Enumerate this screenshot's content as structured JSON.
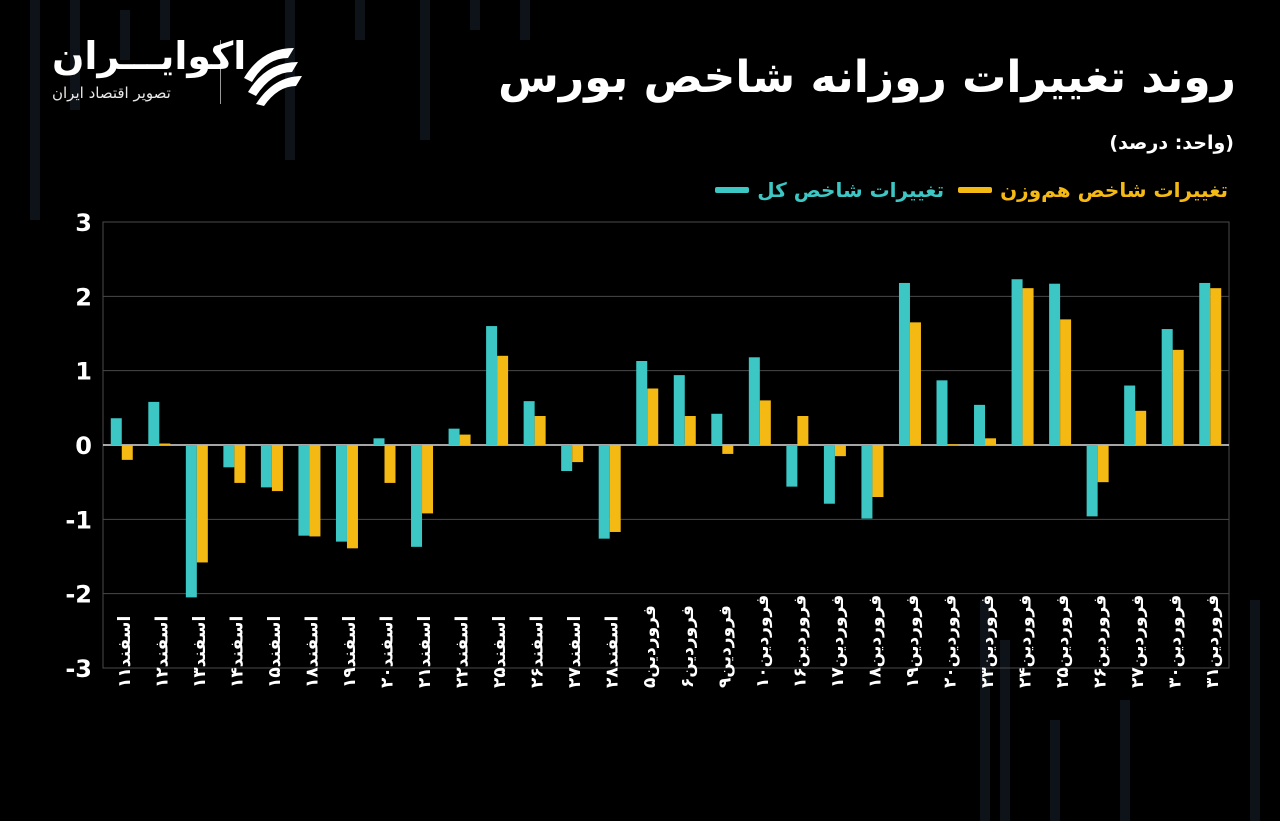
{
  "header": {
    "title": "روند تغییرات روزانه شاخص بورس",
    "unit": "(واحد: درصد)"
  },
  "brand": {
    "name": "اکوایـــران",
    "subtitle": "تصویر اقتصاد ایران",
    "logo_icon": "ecoiran-logo-icon"
  },
  "colors": {
    "background": "#000000",
    "series_total": "#3cc6c4",
    "series_equal": "#f5b914",
    "grid": "#4a4a4a",
    "text": "#ffffff"
  },
  "legend": {
    "total": "تغییرات شاخص کل",
    "equal": "تغییرات شاخص هم‌وزن"
  },
  "chart_data": {
    "type": "bar",
    "ylim": [
      -3,
      3
    ],
    "yticks": [
      3,
      2,
      1,
      0,
      -1,
      -2,
      -3
    ],
    "ytick_labels": [
      "3",
      "2",
      "1",
      "0",
      "-1",
      "-2",
      "-3"
    ],
    "grid": true,
    "legend_position": "top-right",
    "categories": [
      "اسفند۱۱",
      "اسفند۱۲",
      "اسفند۱۳",
      "اسفند۱۴",
      "اسفند۱۵",
      "اسفند۱۸",
      "اسفند۱۹",
      "اسفند۲۰",
      "اسفند۲۱",
      "اسفند۲۲",
      "اسفند۲۵",
      "اسفند۲۶",
      "اسفند۲۷",
      "اسفند۲۸",
      "فروردین۵",
      "فروردین۶",
      "فروردین۹",
      "فروردین۱۰",
      "فروردین۱۶",
      "فروردین۱۷",
      "فروردین۱۸",
      "فروردین۱۹",
      "فروردین۲۰",
      "فروردین۲۳",
      "فروردین۲۴",
      "فروردین۲۵",
      "فروردین۲۶",
      "فروردین۲۷",
      "فروردین۳۰",
      "فروردین۳۱"
    ],
    "series": [
      {
        "name": "تغییرات شاخص کل",
        "values": [
          0.36,
          0.58,
          -2.05,
          -0.3,
          -0.57,
          -1.22,
          -1.3,
          0.09,
          -1.37,
          0.22,
          1.6,
          0.59,
          -0.35,
          -1.26,
          1.13,
          0.94,
          0.42,
          1.18,
          -0.56,
          -0.79,
          -0.99,
          2.18,
          0.87,
          0.54,
          2.23,
          2.17,
          -0.96,
          0.8,
          1.56,
          2.18
        ]
      },
      {
        "name": "تغییرات شاخص هم‌وزن",
        "values": [
          -0.2,
          0.02,
          -1.58,
          -0.51,
          -0.62,
          -1.23,
          -1.39,
          -0.51,
          -0.92,
          0.14,
          1.2,
          0.39,
          -0.23,
          -1.17,
          0.76,
          0.39,
          -0.12,
          0.6,
          0.39,
          -0.15,
          -0.7,
          1.65,
          0.01,
          0.09,
          2.11,
          1.69,
          -0.5,
          0.46,
          1.28,
          2.11
        ]
      }
    ]
  }
}
